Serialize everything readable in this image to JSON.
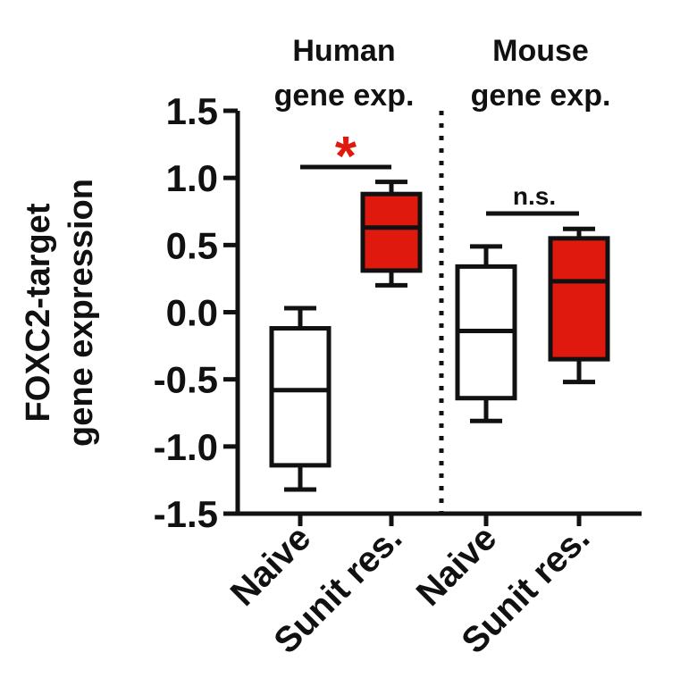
{
  "chart_data": {
    "type": "box",
    "ylabel_lines": [
      "FOXC2-target",
      "gene expression"
    ],
    "ylim": [
      -1.5,
      1.5
    ],
    "yticks": [
      1.5,
      1.0,
      0.5,
      0.0,
      -0.5,
      -1.0,
      -1.5
    ],
    "ytick_labels": [
      "1.5",
      "1.0",
      "0.5",
      "0.0",
      "-0.5",
      "-1.0",
      "-1.5"
    ],
    "categories": [
      "Naive",
      "Sunit res.",
      "Naive",
      "Sunit res."
    ],
    "groups": [
      {
        "title_lines": [
          "Human",
          "gene exp."
        ],
        "significance": "*"
      },
      {
        "title_lines": [
          "Mouse",
          "gene exp."
        ],
        "significance": "n.s."
      }
    ],
    "boxes": [
      {
        "category": "Naive",
        "group": 0,
        "min": -1.32,
        "q1": -1.14,
        "median": -0.58,
        "q3": -0.12,
        "max": 0.03,
        "fill": "#ffffff"
      },
      {
        "category": "Sunit res.",
        "group": 0,
        "min": 0.2,
        "q1": 0.31,
        "median": 0.63,
        "q3": 0.88,
        "max": 0.97,
        "fill": "#e0190f"
      },
      {
        "category": "Naive",
        "group": 1,
        "min": -0.81,
        "q1": -0.64,
        "median": -0.14,
        "q3": 0.34,
        "max": 0.49,
        "fill": "#ffffff"
      },
      {
        "category": "Sunit res.",
        "group": 1,
        "min": -0.52,
        "q1": -0.35,
        "median": 0.23,
        "q3": 0.55,
        "max": 0.62,
        "fill": "#e0190f"
      }
    ],
    "colors": {
      "significant": "#e0190f",
      "axis": "#111111"
    }
  }
}
